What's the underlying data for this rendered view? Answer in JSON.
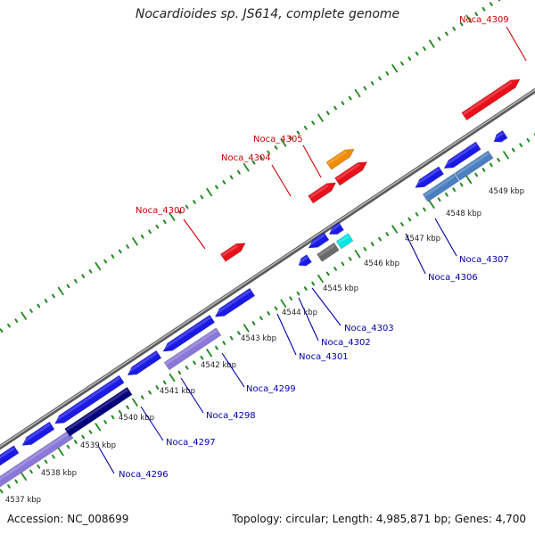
{
  "title": "Nocardioides sp. JS614, complete genome",
  "footer": {
    "accession": "Accession: NC_008699",
    "summary": "Topology: circular; Length: 4,985,871 bp; Genes: 4,700"
  },
  "colors": {
    "background": "#ffffff",
    "backbone": "#8a8a8a",
    "tick": "#1e8a1e",
    "forward_gene": "#e8101a",
    "forward_label": "#cc0000",
    "reverse_gene": "#1a1ae6",
    "reverse_label": "#0000aa",
    "dark_blue": "#00007a",
    "lavender": "#8a78d8",
    "steel_blue": "#4a7fc1",
    "orange": "#f08c00",
    "grey": "#6a6a6a",
    "cyan": "#00e5e5"
  },
  "position_ruler": [
    "4537 kbp",
    "4538 kbp",
    "4539 kbp",
    "4540 kbp",
    "4541 kbp",
    "4542 kbp",
    "4543 kbp",
    "4544 kbp",
    "4545 kbp",
    "4546 kbp",
    "4547 kbp",
    "4548 kbp",
    "4549 kbp"
  ],
  "forward_gene_labels": [
    "Noca_4300",
    "Noca_4304",
    "Noca_4305",
    "Noca_4309"
  ],
  "reverse_gene_labels": [
    "Noca_4296",
    "Noca_4297",
    "Noca_4298",
    "Noca_4299",
    "Noca_4301",
    "Noca_4302",
    "Noca_4303",
    "Noca_4306",
    "Noca_4307"
  ]
}
